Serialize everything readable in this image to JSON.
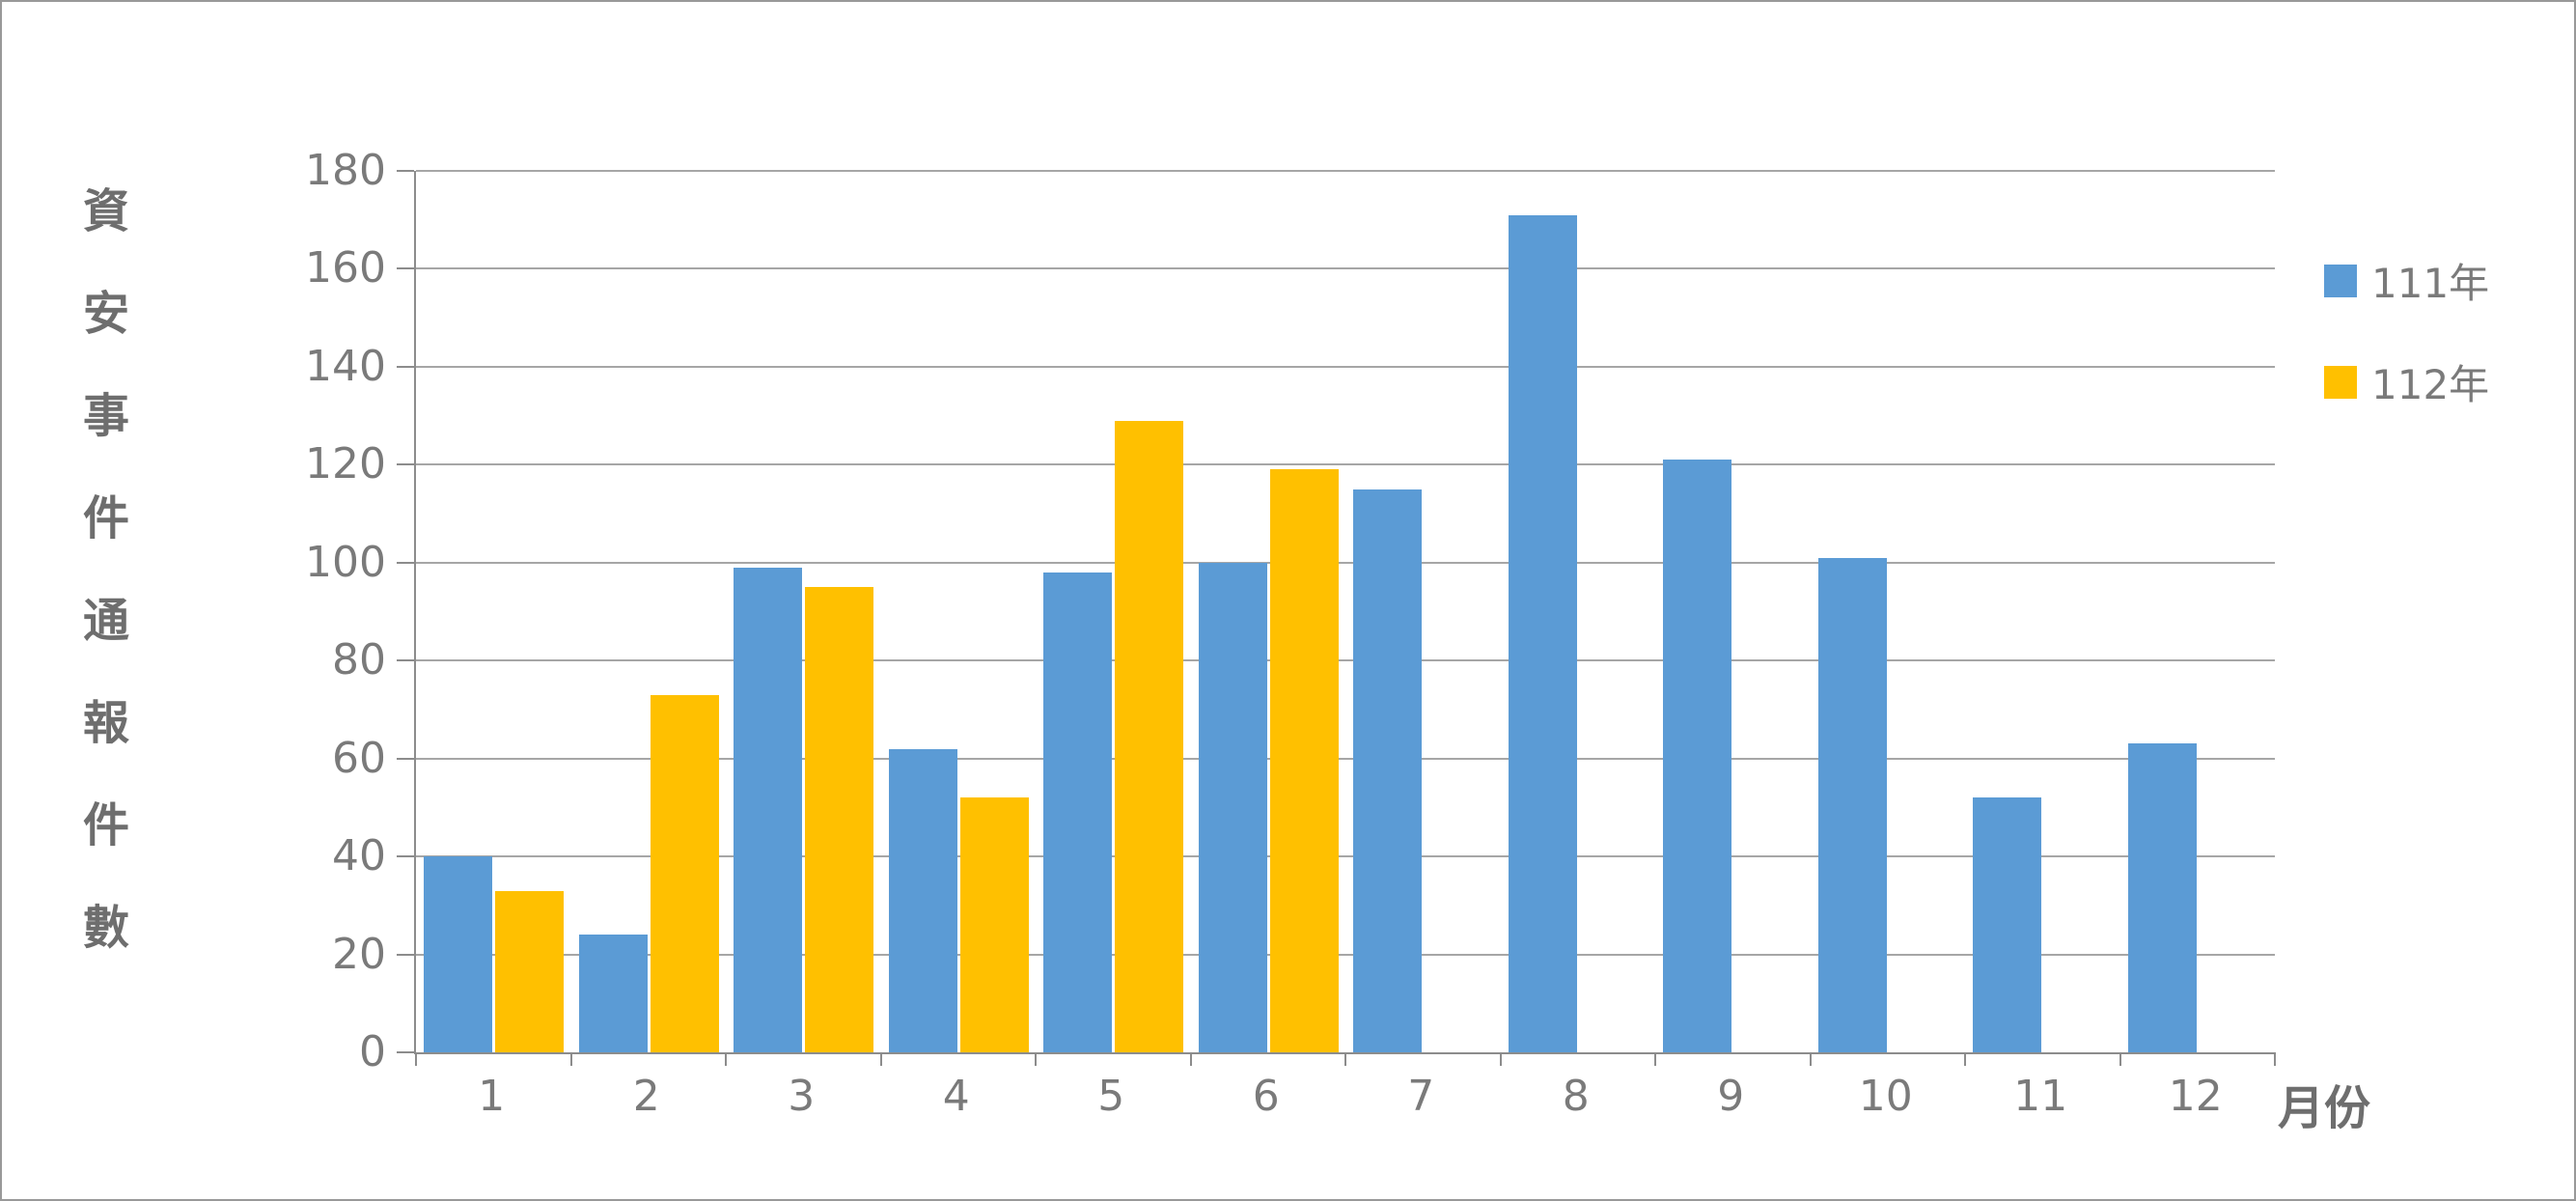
{
  "chart_data": {
    "type": "bar",
    "title": "",
    "x_axis_title": "月份",
    "y_axis_title": "資安事件通報件數",
    "categories": [
      "1",
      "2",
      "3",
      "4",
      "5",
      "6",
      "7",
      "8",
      "9",
      "10",
      "11",
      "12"
    ],
    "series": [
      {
        "name": "111年",
        "color": "#5B9BD5",
        "values": [
          40,
          24,
          99,
          62,
          98,
          100,
          115,
          171,
          121,
          101,
          52,
          63
        ]
      },
      {
        "name": "112年",
        "color": "#FFC000",
        "values": [
          33,
          73,
          95,
          52,
          129,
          119,
          null,
          null,
          null,
          null,
          null,
          null
        ]
      }
    ],
    "ylim": [
      0,
      180
    ],
    "y_ticks": [
      0,
      20,
      40,
      60,
      80,
      100,
      120,
      140,
      160,
      180
    ],
    "grid": true,
    "legend_position": "right"
  },
  "colors": {
    "series_111": "#5B9BD5",
    "series_112": "#FFC000",
    "tick_text": "#7A7A7A",
    "axis_title_text": "#6E6E6E",
    "gridline": "#A6A6A6",
    "axis_line": "#8C8C8C",
    "frame_border": "#999999",
    "background": "#FFFFFF"
  }
}
